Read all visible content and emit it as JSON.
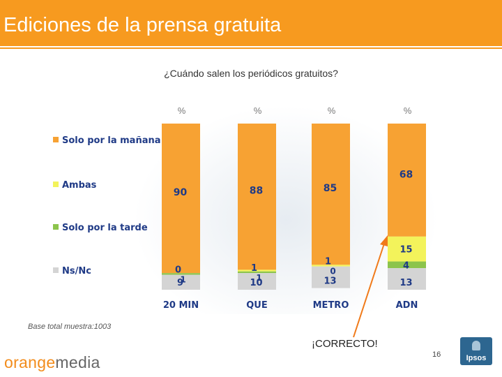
{
  "header": {
    "title": "Ediciones de la prensa gratuita"
  },
  "question": "¿Cuándo salen los periódicos gratuitos?",
  "footnote": "Base total muestra:1003",
  "callout": "¡CORRECTO!",
  "page_number": "16",
  "brand": {
    "part1": "orange",
    "part2": "media"
  },
  "logo": {
    "name": "Ipsos"
  },
  "colors": {
    "header_bg": "#f79a1f",
    "morning": "#f7a233",
    "both": "#f3f35b",
    "afternoon": "#8cc44c",
    "nsnc": "#d4d4d4",
    "label_text": "#1f3a86",
    "arrow": "#f07a1a"
  },
  "chart_data": {
    "type": "bar",
    "stacked": true,
    "orientation": "vertical",
    "unit": "%",
    "categories": [
      "20 MIN",
      "QUE",
      "METRO",
      "ADN"
    ],
    "series": [
      {
        "name": "Solo por la mañana",
        "color": "#f7a233",
        "values": [
          90,
          88,
          85,
          68
        ]
      },
      {
        "name": "Ambas",
        "color": "#f3f35b",
        "values": [
          0,
          1,
          1,
          15
        ]
      },
      {
        "name": "Solo por la tarde",
        "color": "#8cc44c",
        "values": [
          1,
          1,
          0,
          4
        ]
      },
      {
        "name": "Ns/Nc",
        "color": "#d4d4d4",
        "values": [
          9,
          10,
          13,
          13
        ]
      }
    ],
    "ylim": [
      0,
      100
    ],
    "legend_position": "left",
    "grid": false
  }
}
